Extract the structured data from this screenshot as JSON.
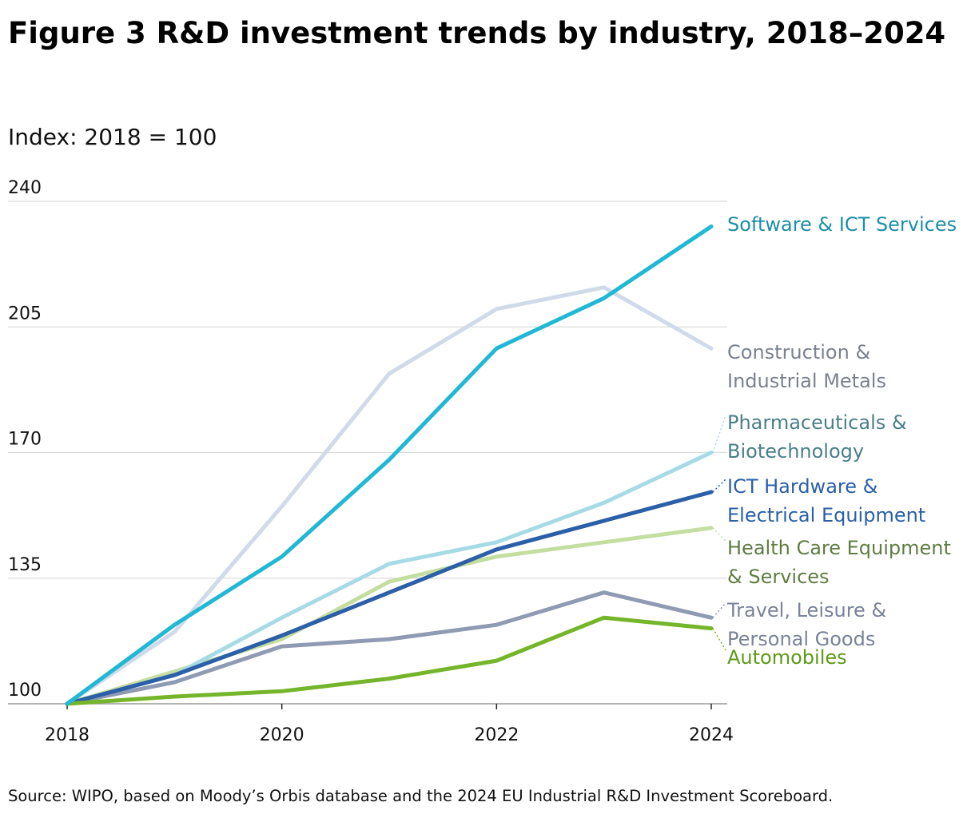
{
  "figure": {
    "title": "Figure 3 R&D investment trends by industry, 2018–2024",
    "subtitle": "Index: 2018 = 100",
    "source": "Source: WIPO, based on Moody’s Orbis database and the 2024 EU Industrial R&D Investment Scoreboard."
  },
  "chart_data": {
    "type": "line",
    "title": "Figure 3 R&D investment trends by industry, 2018–2024",
    "subtitle": "Index: 2018 = 100",
    "xlabel": "",
    "ylabel": "Index: 2018 = 100",
    "x": [
      2018,
      2019,
      2020,
      2021,
      2022,
      2023,
      2024
    ],
    "x_ticks": [
      2018,
      2020,
      2022,
      2024
    ],
    "y_ticks": [
      100,
      135,
      170,
      205,
      240
    ],
    "ylim": [
      100,
      240
    ],
    "xlim": [
      2018,
      2024
    ],
    "grid": true,
    "legend": "direct-labels-right",
    "series": [
      {
        "name": "Construction & Industrial Metals",
        "label_lines": [
          "Construction &",
          "Industrial Metals"
        ],
        "color": "#d0dae8",
        "label_color": "#7a8290",
        "values": [
          100,
          120,
          155,
          192,
          210,
          216,
          199
        ]
      },
      {
        "name": "Health Care Equipment & Services",
        "label_lines": [
          "Health Care Equipment",
          "& Services"
        ],
        "color": "#c4dea0",
        "label_color": "#5e7d42",
        "values": [
          100,
          109,
          118,
          134,
          141,
          145,
          149
        ]
      },
      {
        "name": "Pharmaceuticals & Biotechnology",
        "label_lines": [
          "Pharmaceuticals &",
          "Biotechnology"
        ],
        "color": "#a6dbe6",
        "label_color": "#4a7f88",
        "values": [
          100,
          108,
          124,
          139,
          145,
          156,
          170
        ]
      },
      {
        "name": "Travel, Leisure & Personal Goods",
        "label_lines": [
          "Travel, Leisure &",
          "Personal Goods"
        ],
        "color": "#8f9bb2",
        "label_color": "#7a8398",
        "values": [
          100,
          106,
          116,
          118,
          122,
          131,
          124
        ]
      },
      {
        "name": "ICT Hardware & Electrical Equipment",
        "label_lines": [
          "ICT Hardware &",
          "Electrical Equipment"
        ],
        "color": "#2b5fa8",
        "label_color": "#2b5fa8",
        "values": [
          100,
          108,
          119,
          131,
          143,
          151,
          159
        ]
      },
      {
        "name": "Automobiles",
        "label_lines": [
          "Automobiles"
        ],
        "color": "#74b52a",
        "label_color": "#5c9a18",
        "values": [
          100,
          102,
          103.5,
          107,
          112,
          124,
          121
        ]
      },
      {
        "name": "Software & ICT Services",
        "label_lines": [
          "Software & ICT Services"
        ],
        "color": "#21b8d6",
        "label_color": "#1c8fa8",
        "values": [
          100,
          122,
          141,
          168,
          199,
          213,
          233
        ]
      }
    ]
  }
}
